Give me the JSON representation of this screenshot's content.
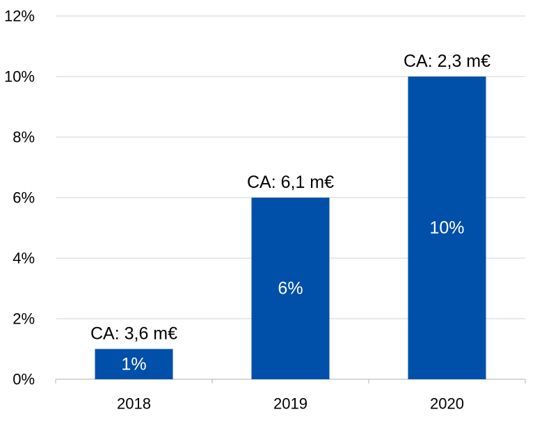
{
  "chart_data": {
    "type": "bar",
    "title": "",
    "xlabel": "",
    "ylabel": "",
    "categories": [
      "2018",
      "2019",
      "2020"
    ],
    "values": [
      1,
      6,
      10
    ],
    "value_labels": [
      "1%",
      "6%",
      "10%"
    ],
    "annotations": [
      "CA: 3,6 m€",
      "CA: 6,1 m€",
      "CA: 2,3 m€"
    ],
    "ylim": [
      0,
      12
    ],
    "yticks": [
      0,
      2,
      4,
      6,
      8,
      10,
      12
    ],
    "ytick_labels": [
      "0%",
      "2%",
      "4%",
      "6%",
      "8%",
      "10%",
      "12%"
    ],
    "grid": true,
    "legend": "none",
    "colors": {
      "bar": "#0050AA",
      "bar_label": "#ffffff",
      "grid": "#d9d9d9",
      "axis": "#bfbfbf"
    }
  }
}
